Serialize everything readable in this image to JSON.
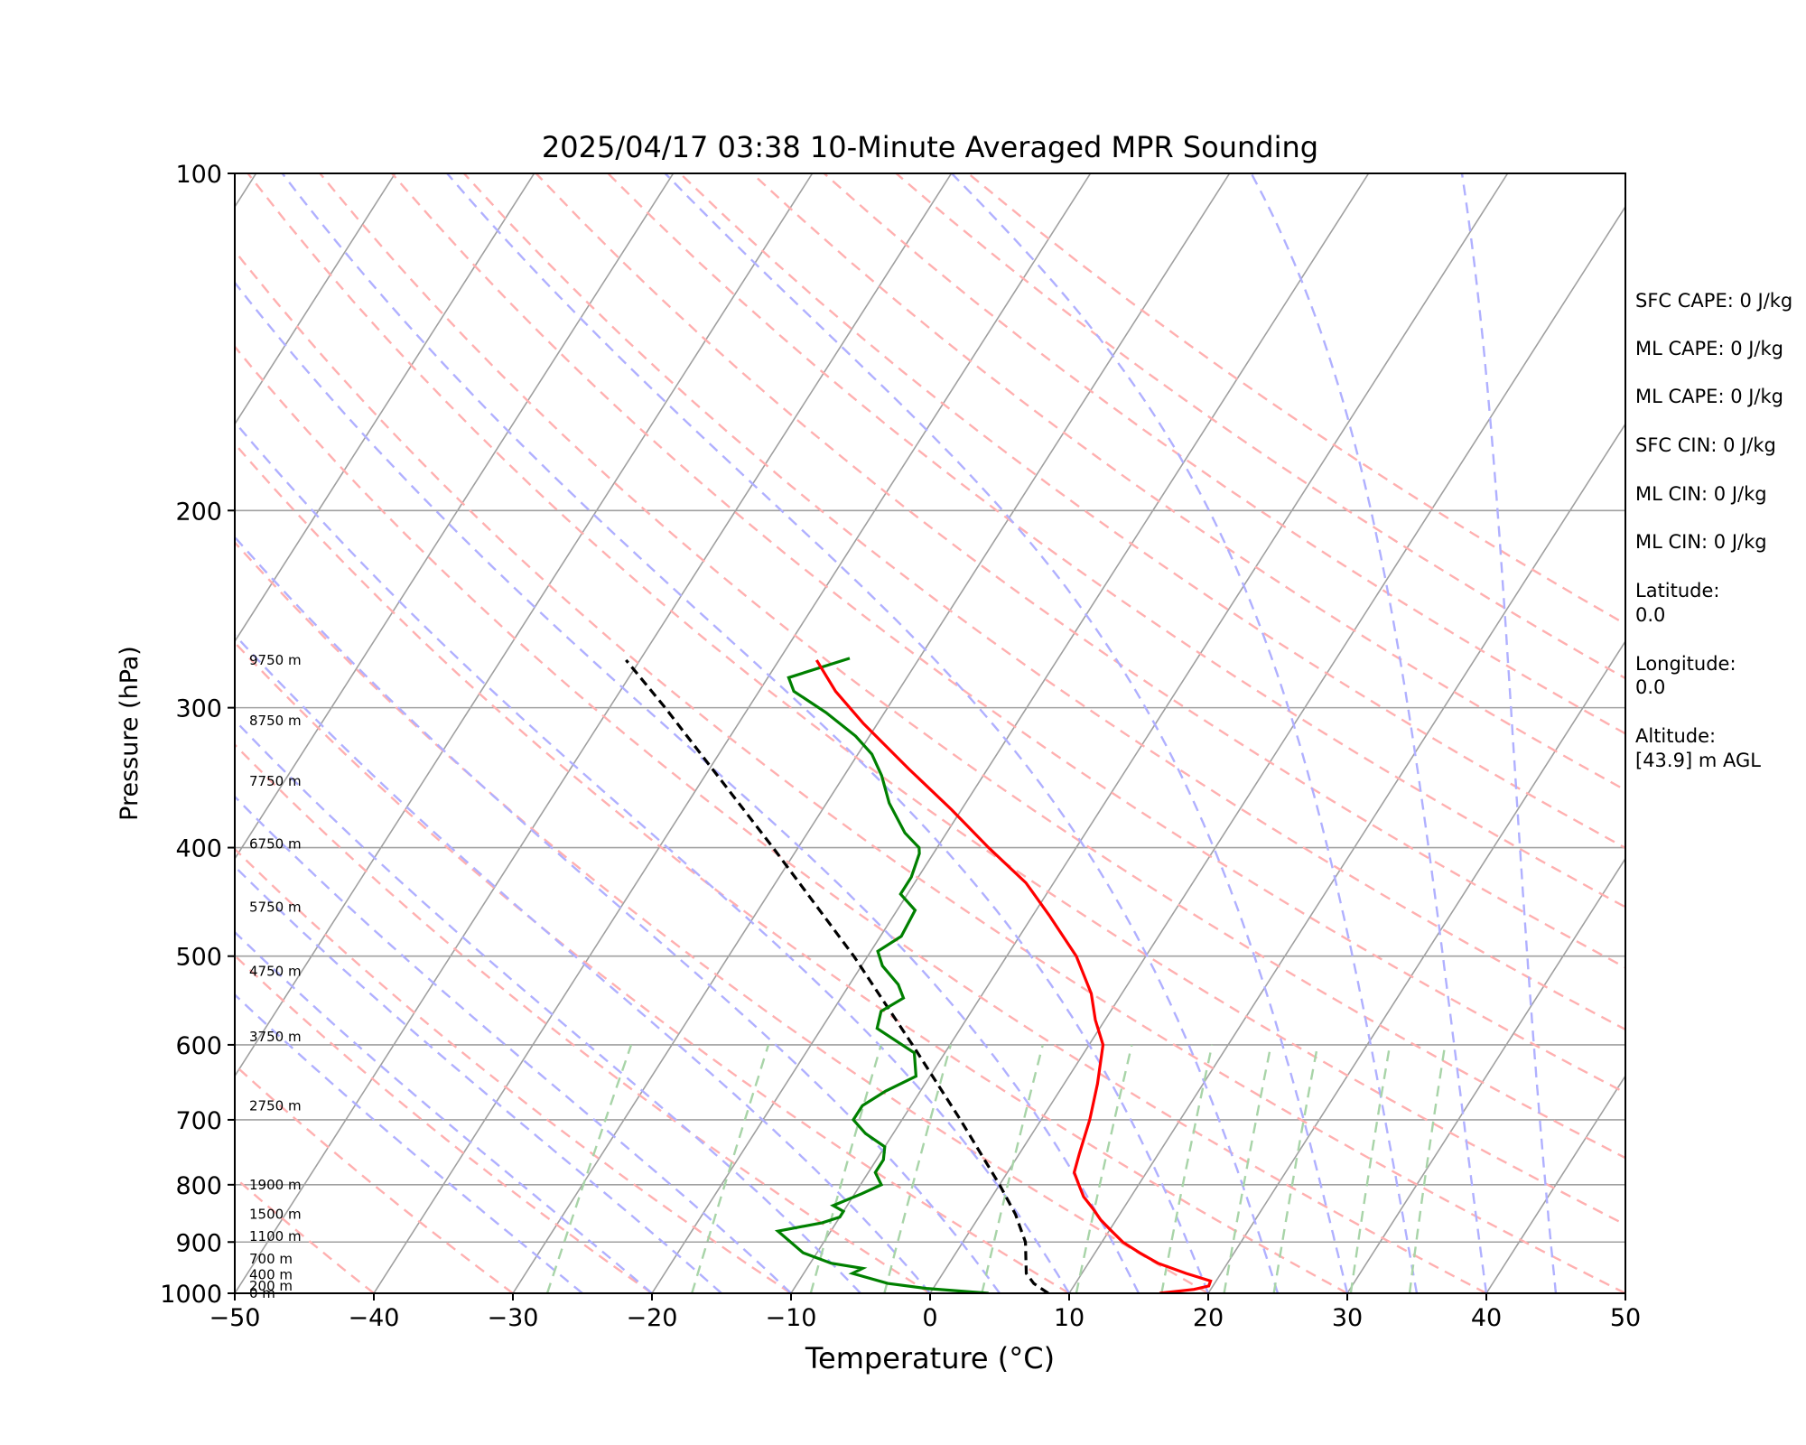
{
  "chart_data": {
    "type": "skew-t",
    "title": "2025/04/17 03:38 10-Minute Averaged MPR Sounding",
    "xlabel": "Temperature (°C)",
    "ylabel": "Pressure (hPa)",
    "xlim": [
      -50,
      50
    ],
    "ylim_hpa": [
      1000,
      100
    ],
    "y_scale": "log",
    "x_ticks": [
      "−50",
      "−40",
      "−30",
      "−20",
      "−10",
      "0",
      "10",
      "20",
      "30",
      "40",
      "50"
    ],
    "y_ticks": [
      "100",
      "200",
      "300",
      "400",
      "500",
      "600",
      "700",
      "800",
      "900",
      "1000"
    ],
    "x_tick_values": [
      -50,
      -40,
      -30,
      -20,
      -10,
      0,
      10,
      20,
      30,
      40,
      50
    ],
    "y_tick_values": [
      100,
      200,
      300,
      400,
      500,
      600,
      700,
      800,
      900,
      1000
    ],
    "grid": true,
    "temperature": {
      "color": "#ff0000",
      "points": [
        [
          1000,
          16.5
        ],
        [
          992,
          18.8
        ],
        [
          985,
          19.7
        ],
        [
          975,
          19.6
        ],
        [
          960,
          17.5
        ],
        [
          940,
          15.0
        ],
        [
          920,
          13.2
        ],
        [
          900,
          11.5
        ],
        [
          880,
          10.2
        ],
        [
          860,
          8.9
        ],
        [
          840,
          7.8
        ],
        [
          820,
          6.6
        ],
        [
          800,
          5.7
        ],
        [
          780,
          4.8
        ],
        [
          750,
          4.3
        ],
        [
          700,
          3.5
        ],
        [
          650,
          2.4
        ],
        [
          600,
          1.0
        ],
        [
          570,
          -0.7
        ],
        [
          540,
          -2.2
        ],
        [
          500,
          -5.0
        ],
        [
          460,
          -8.8
        ],
        [
          430,
          -12.0
        ],
        [
          400,
          -16.3
        ],
        [
          370,
          -20.7
        ],
        [
          340,
          -25.7
        ],
        [
          310,
          -31.0
        ],
        [
          290,
          -34.5
        ],
        [
          272,
          -37.3
        ]
      ]
    },
    "dewpoint": {
      "color": "#008000",
      "points": [
        [
          1000,
          4.2
        ],
        [
          990,
          -0.5
        ],
        [
          980,
          -3.5
        ],
        [
          960,
          -6.5
        ],
        [
          950,
          -6.0
        ],
        [
          940,
          -8.5
        ],
        [
          920,
          -11.0
        ],
        [
          880,
          -13.8
        ],
        [
          865,
          -11.0
        ],
        [
          855,
          -10.0
        ],
        [
          845,
          -10.0
        ],
        [
          835,
          -11.0
        ],
        [
          815,
          -9.5
        ],
        [
          800,
          -8.5
        ],
        [
          780,
          -9.5
        ],
        [
          760,
          -9.5
        ],
        [
          740,
          -10.0
        ],
        [
          720,
          -12.0
        ],
        [
          700,
          -13.5
        ],
        [
          680,
          -13.5
        ],
        [
          660,
          -12.5
        ],
        [
          640,
          -11.0
        ],
        [
          610,
          -12.2
        ],
        [
          580,
          -16.0
        ],
        [
          560,
          -16.5
        ],
        [
          545,
          -15.5
        ],
        [
          530,
          -16.5
        ],
        [
          510,
          -18.5
        ],
        [
          495,
          -19.5
        ],
        [
          480,
          -18.5
        ],
        [
          455,
          -18.7
        ],
        [
          440,
          -20.5
        ],
        [
          425,
          -20.5
        ],
        [
          405,
          -21.0
        ],
        [
          400,
          -21.3
        ],
        [
          388,
          -23.0
        ],
        [
          365,
          -25.5
        ],
        [
          345,
          -27.3
        ],
        [
          330,
          -29.0
        ],
        [
          318,
          -31.0
        ],
        [
          303,
          -34.2
        ],
        [
          290,
          -37.5
        ],
        [
          282,
          -38.5
        ],
        [
          271,
          -35.0
        ]
      ]
    },
    "parcel": {
      "color": "#000000",
      "points": [
        [
          1000,
          8.5
        ],
        [
          980,
          7.0
        ],
        [
          960,
          6.0
        ],
        [
          900,
          4.5
        ],
        [
          850,
          2.5
        ],
        [
          800,
          0.0
        ],
        [
          700,
          -5.8
        ],
        [
          600,
          -12.7
        ],
        [
          500,
          -21.0
        ],
        [
          400,
          -31.8
        ],
        [
          300,
          -46.0
        ],
        [
          272,
          -51.0
        ]
      ]
    },
    "height_labels": [
      "9750 m",
      "8750 m",
      "7750 m",
      "6750 m",
      "5750 m",
      "4750 m",
      "3750 m",
      "2750 m",
      "1900 m",
      "1500 m",
      "1100 m",
      "700 m",
      "400 m",
      "200 m",
      "0 m"
    ],
    "height_label_pressures": [
      272,
      308,
      349,
      397,
      452,
      516,
      590,
      680,
      800,
      850,
      890,
      932,
      963,
      985,
      1000
    ],
    "side_info": {
      "sfc_cape": "SFC CAPE: 0 J/kg",
      "ml_cape_1": "ML CAPE: 0 J/kg",
      "ml_cape_2": "ML CAPE: 0 J/kg",
      "sfc_cin": "SFC CIN: 0 J/kg",
      "ml_cin_1": "ML CIN: 0 J/kg",
      "ml_cin_2": "ML CIN: 0 J/kg",
      "latitude_label": "Latitude:",
      "latitude_value": "0.0",
      "longitude_label": "Longitude:",
      "longitude_value": "0.0",
      "altitude_label": "Altitude:",
      "altitude_value": "[43.9] m AGL"
    },
    "colors": {
      "isotherm": "#a0a0a0",
      "dry_adiabat": "#ffb0b0",
      "moist_adiabat": "#b0b0ff",
      "mixing_ratio": "#a8d4a8"
    }
  }
}
